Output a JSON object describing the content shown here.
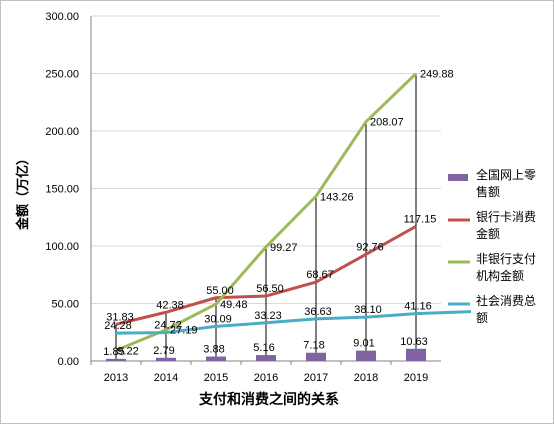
{
  "chart_data": {
    "type": "bar",
    "title": "",
    "xlabel": "支付和消费之间的关系",
    "ylabel": "金额（万亿）",
    "ylim": [
      0,
      300
    ],
    "yticks": [
      "0.00",
      "50.00",
      "100.00",
      "150.00",
      "200.00",
      "250.00",
      "300.00"
    ],
    "categories": [
      "2013",
      "2014",
      "2015",
      "2016",
      "2017",
      "2018",
      "2019"
    ],
    "grid": true,
    "legend_position": "right",
    "series": [
      {
        "name": "全国网上零售额",
        "kind": "bar",
        "color": "#8064a2",
        "values": [
          1.85,
          2.79,
          3.88,
          5.16,
          7.18,
          9.01,
          10.63
        ],
        "labels": [
          "1.85",
          "2.79",
          "3.88",
          "5.16",
          "7.18",
          "9.01",
          "10.63"
        ]
      },
      {
        "name": "银行卡消费金额",
        "kind": "line",
        "color": "#c0504d",
        "values": [
          31.83,
          42.38,
          55.0,
          56.5,
          68.67,
          92.76,
          117.15
        ],
        "labels": [
          "31.83",
          "42.38",
          "55.00",
          "56.50",
          "68.67",
          "92.76",
          "117.15"
        ]
      },
      {
        "name": "非银行支付机构金额",
        "kind": "line",
        "color": "#9bbb59",
        "values": [
          9.22,
          27.19,
          49.48,
          99.27,
          143.26,
          208.07,
          249.88
        ],
        "labels": [
          "9.22",
          "27.19",
          "49.48",
          "99.27",
          "143.26",
          "208.07",
          "249.88"
        ]
      },
      {
        "name": "社会消费总额",
        "kind": "line",
        "color": "#4bacc6",
        "values": [
          24.28,
          24.72,
          30.09,
          33.23,
          36.63,
          38.1,
          41.16
        ],
        "labels": [
          "24.28",
          "24.72",
          "30.09",
          "33.23",
          "36.63",
          "38.10",
          "41.16"
        ]
      }
    ],
    "legend": [
      {
        "lines": [
          "全国网上零",
          "售额"
        ],
        "color": "#8064a2",
        "kind": "bar"
      },
      {
        "lines": [
          "银行卡消费",
          "金额"
        ],
        "color": "#c0504d",
        "kind": "line"
      },
      {
        "lines": [
          "非银行支付",
          "机构金额"
        ],
        "color": "#9bbb59",
        "kind": "line"
      },
      {
        "lines": [
          "社会消费总",
          "额"
        ],
        "color": "#4bacc6",
        "kind": "line"
      }
    ]
  }
}
